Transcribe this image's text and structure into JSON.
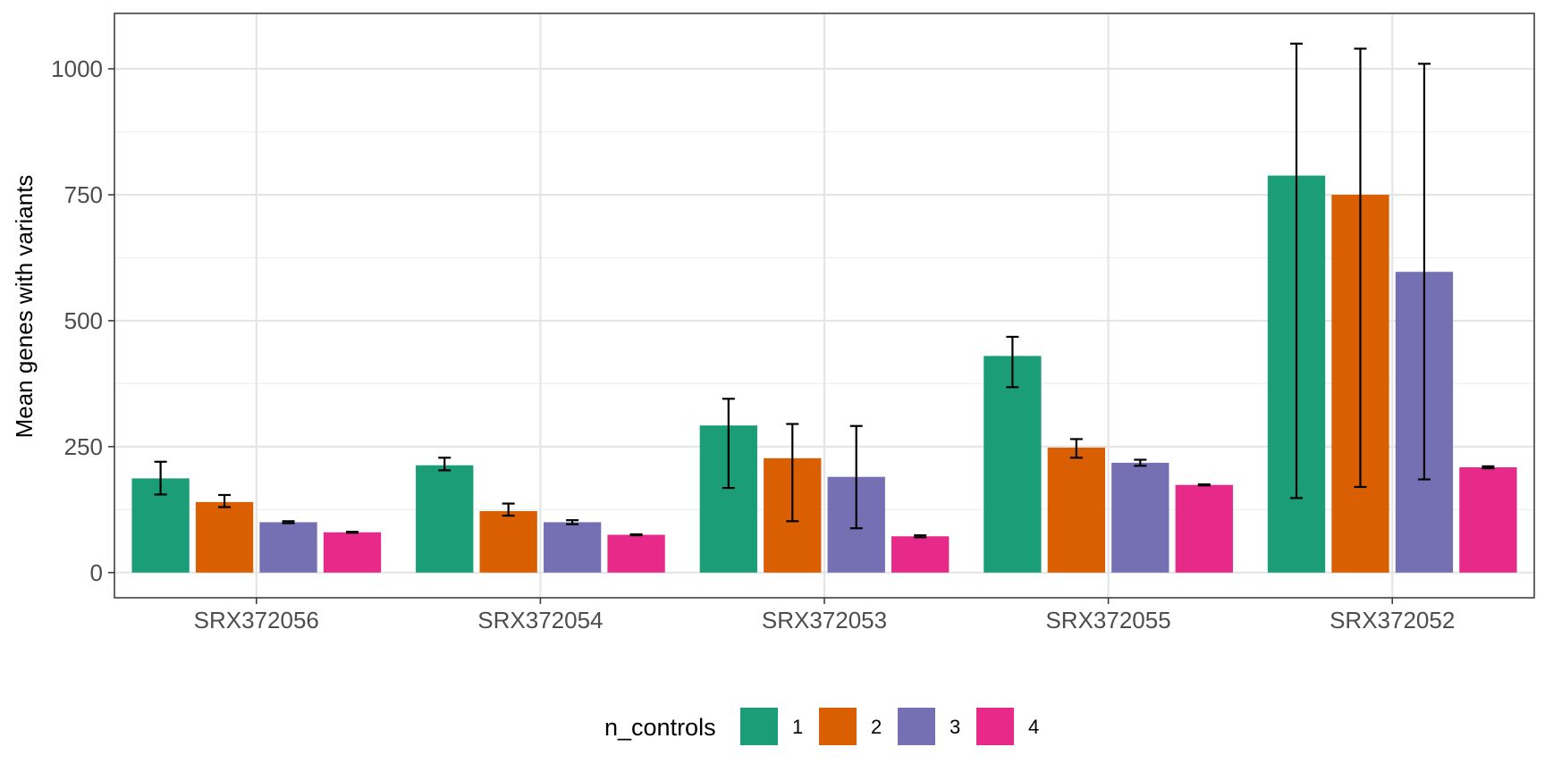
{
  "chart_data": {
    "type": "bar",
    "ylabel": "Mean genes with variants",
    "xlabel": "",
    "ylim": [
      -50,
      1110
    ],
    "yticks": [
      0,
      250,
      500,
      750,
      1000
    ],
    "grid": true,
    "legend": {
      "title": "n_controls",
      "position": "bottom",
      "entries": [
        "1",
        "2",
        "3",
        "4"
      ]
    },
    "categories": [
      "SRX372056",
      "SRX372054",
      "SRX372053",
      "SRX372055",
      "SRX372052"
    ],
    "series": [
      {
        "name": "1",
        "color": "#1b9e77",
        "values": [
          187,
          213,
          292,
          430,
          788
        ],
        "error_low": [
          155,
          203,
          168,
          368,
          148
        ],
        "error_high": [
          220,
          228,
          345,
          468,
          1050
        ]
      },
      {
        "name": "2",
        "color": "#d95f02",
        "values": [
          140,
          122,
          227,
          248,
          750
        ],
        "error_low": [
          130,
          113,
          102,
          228,
          170
        ],
        "error_high": [
          154,
          137,
          295,
          265,
          1040
        ]
      },
      {
        "name": "3",
        "color": "#7570b3",
        "values": [
          100,
          100,
          190,
          218,
          597
        ],
        "error_low": [
          98,
          96,
          88,
          212,
          185
        ],
        "error_high": [
          102,
          104,
          291,
          224,
          1010
        ]
      },
      {
        "name": "4",
        "color": "#e7298a",
        "values": [
          80,
          75,
          72,
          174,
          209
        ],
        "error_low": [
          79,
          74,
          70,
          173,
          207
        ],
        "error_high": [
          81,
          76,
          74,
          175,
          211
        ]
      }
    ]
  }
}
